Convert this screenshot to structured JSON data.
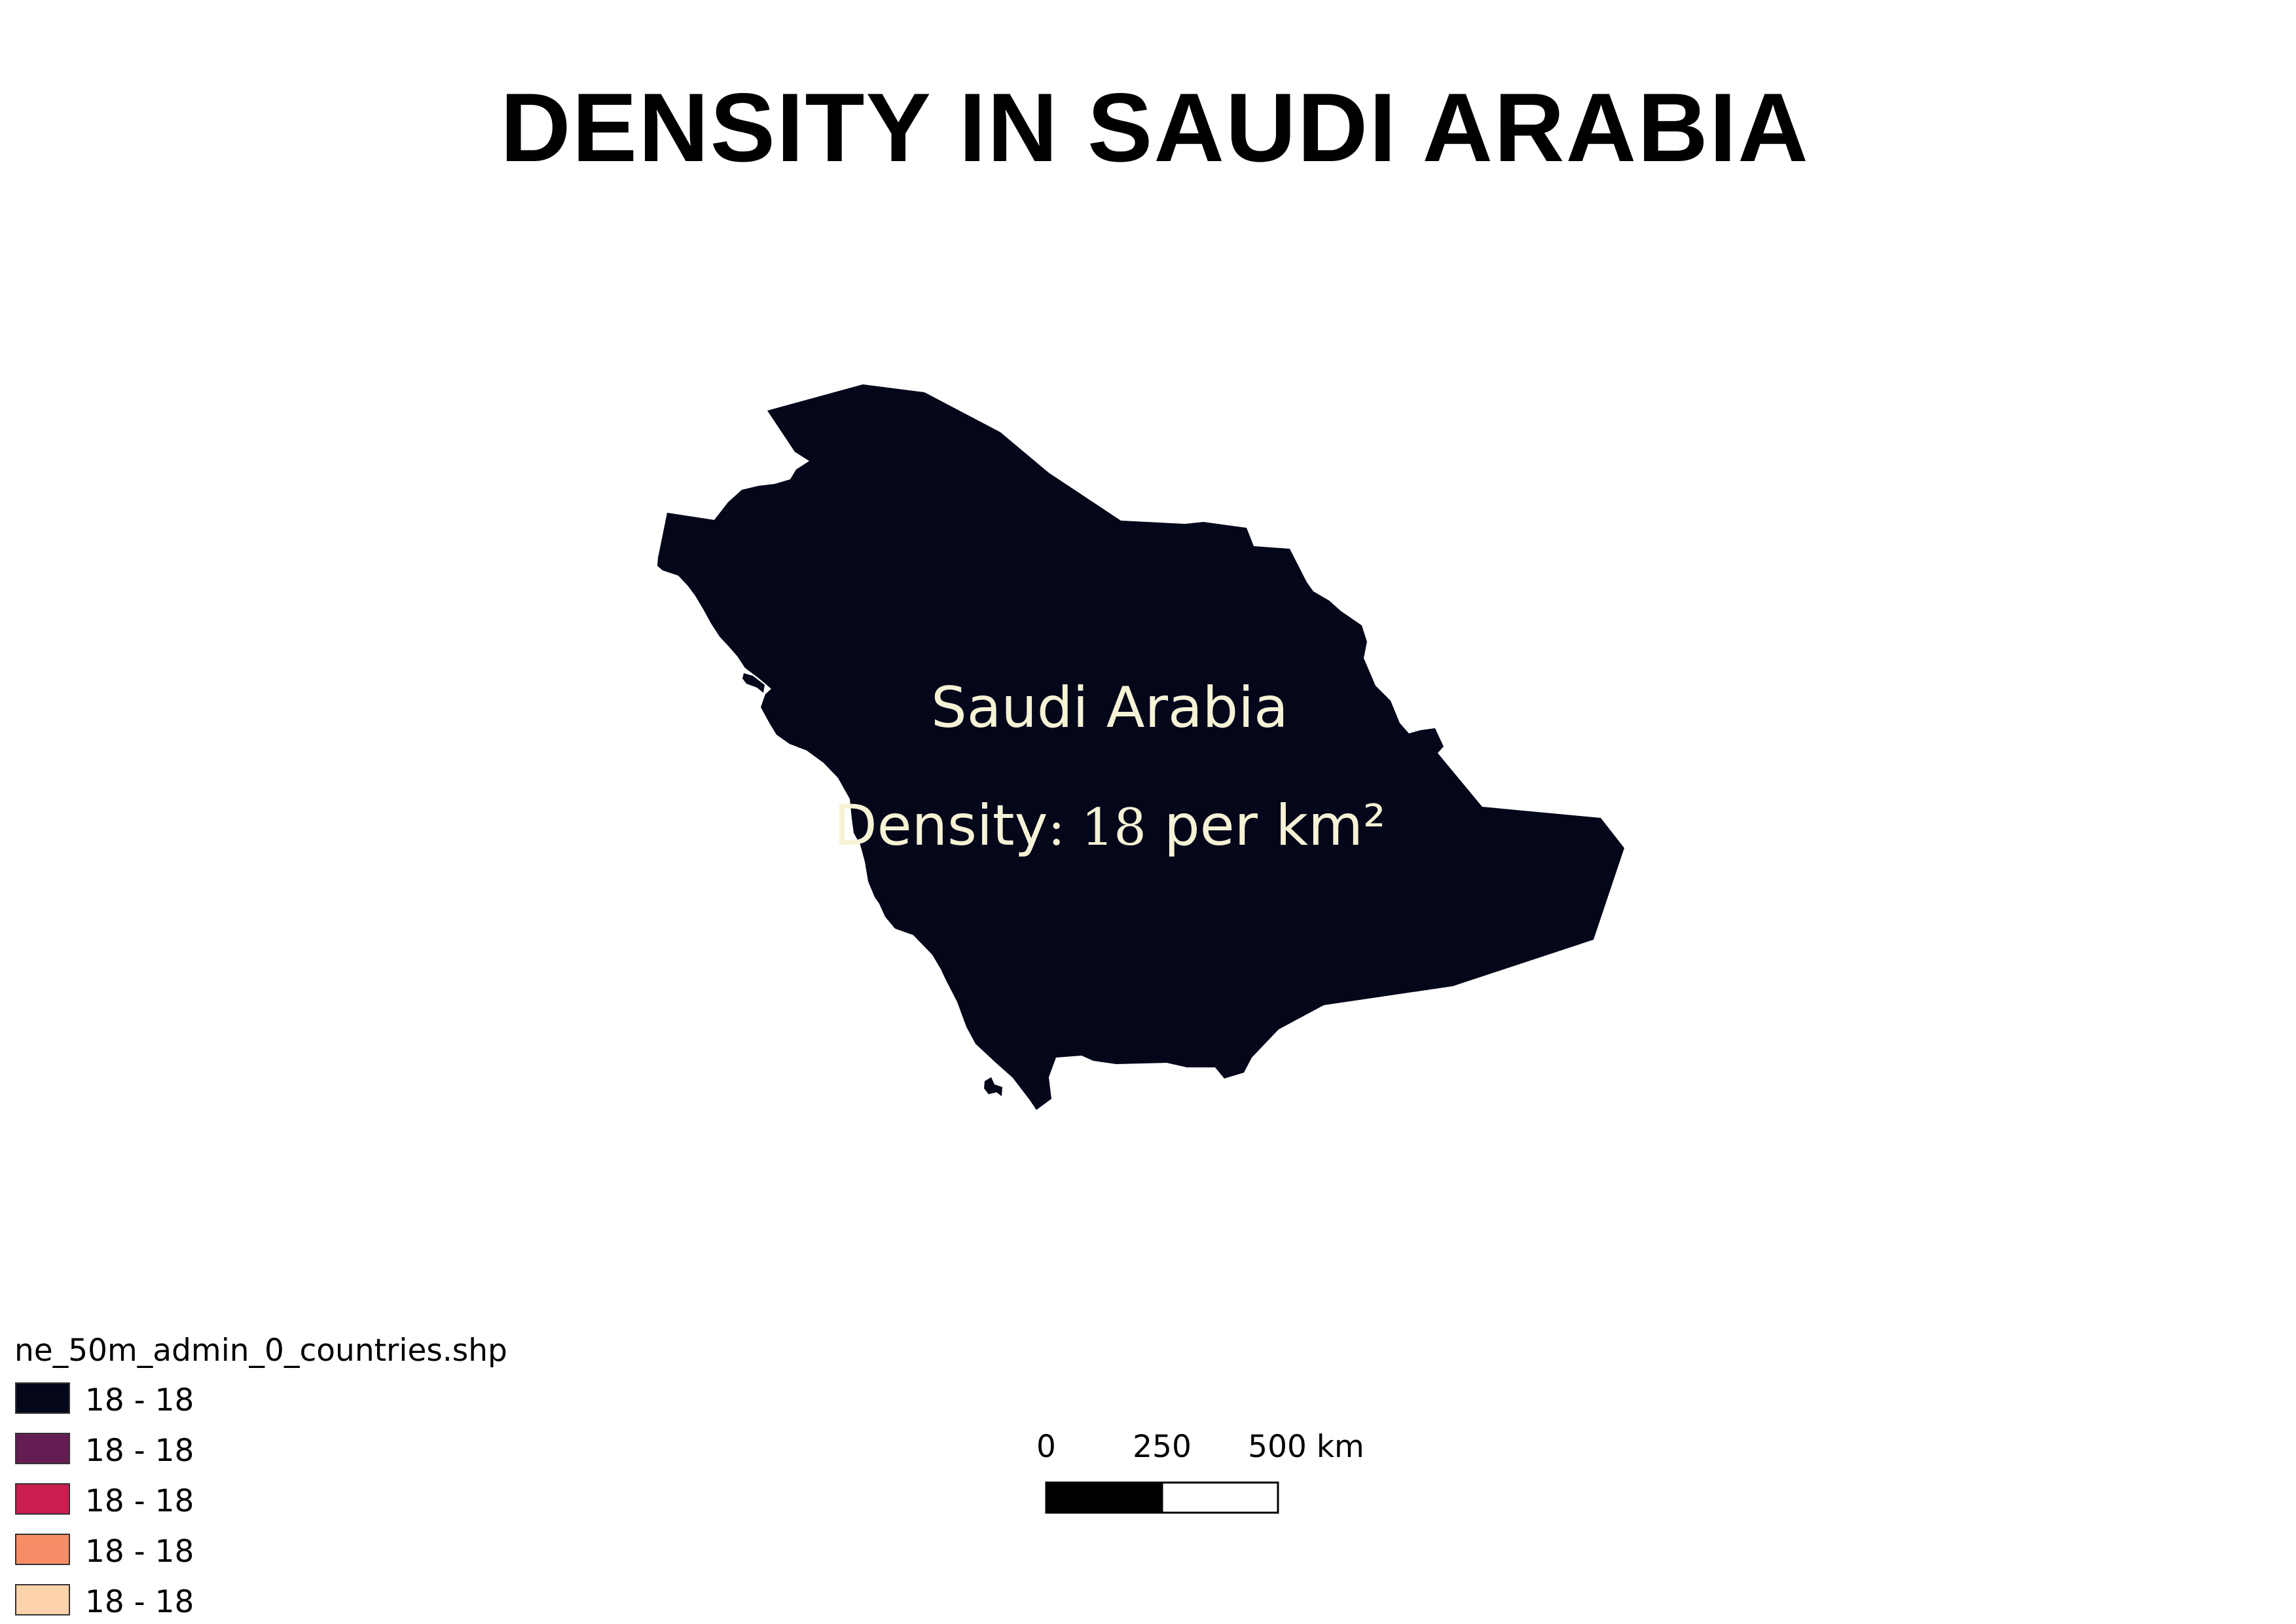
{
  "title": "DENSITY IN SAUDI ARABIA",
  "country": {
    "name": "Saudi Arabia",
    "density_prefix": "Density",
    "density_sep": ": ",
    "density_value": "18",
    "density_unit": " per km²",
    "fill_color": "#04061a",
    "label_color": "#f6f2d6"
  },
  "legend": {
    "layer_name": "ne_50m_admin_0_countries.shp",
    "items": [
      {
        "label": "18 - 18",
        "color": "#04061a"
      },
      {
        "label": "18 - 18",
        "color": "#641d52"
      },
      {
        "label": "18 - 18",
        "color": "#cb1e50"
      },
      {
        "label": "18 - 18",
        "color": "#f78d66"
      },
      {
        "label": "18 - 18",
        "color": "#fdd3ab"
      }
    ]
  },
  "scale_bar": {
    "labels": [
      "0",
      "250",
      "500 km"
    ]
  }
}
